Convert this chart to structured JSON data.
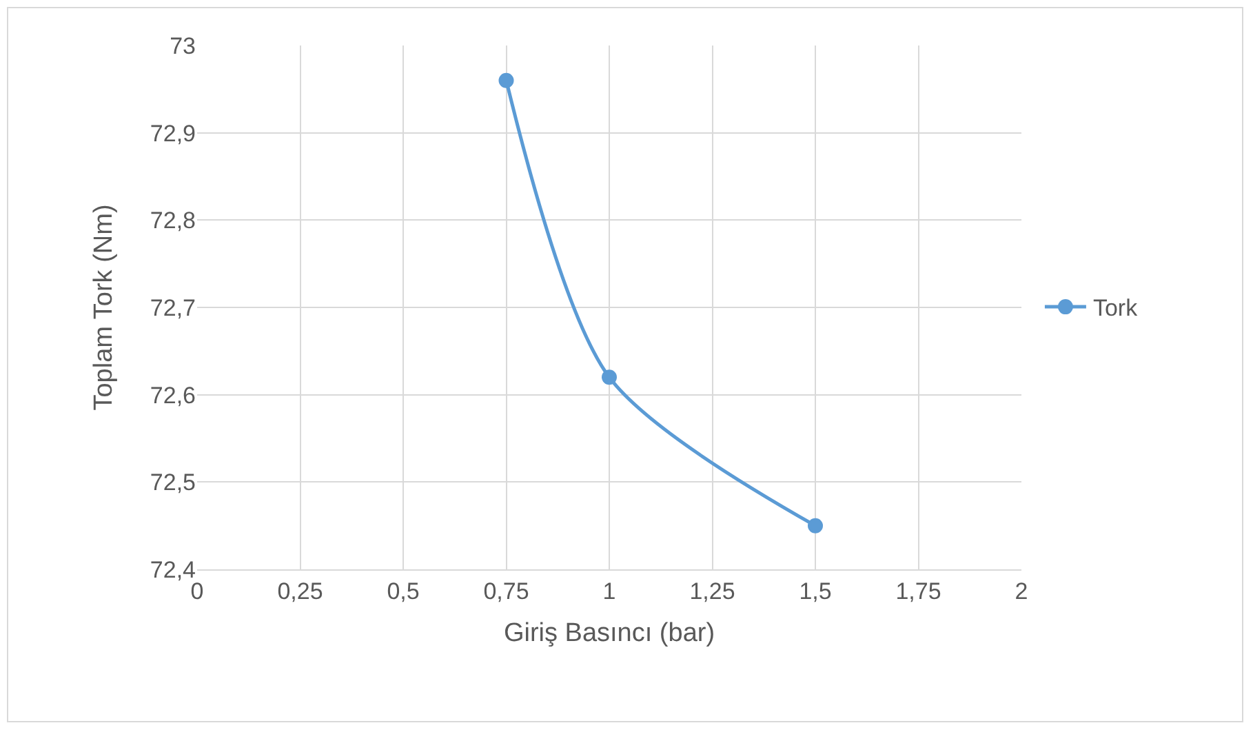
{
  "chart_data": {
    "type": "line",
    "xlabel": "Giriş Basıncı (bar)",
    "ylabel": "Toplam Tork (Nm)",
    "x": [
      0.75,
      1,
      1.5
    ],
    "series": [
      {
        "name": "Tork",
        "color": "#5b9bd5",
        "values": [
          72.96,
          72.62,
          72.45
        ]
      }
    ],
    "xlim": [
      0,
      2
    ],
    "xticks": [
      0,
      {
        "value": 0.25,
        "label": "0,25"
      },
      {
        "value": 0.5,
        "label": "0,5"
      },
      {
        "value": 0.75,
        "label": "0,75"
      },
      1,
      {
        "value": 1.25,
        "label": "1,25"
      },
      {
        "value": 1.5,
        "label": "1,5"
      },
      {
        "value": 1.75,
        "label": "1,75"
      },
      2
    ],
    "ylim": [
      72.4,
      73
    ],
    "yticks": [
      {
        "value": 72.4,
        "label": "72,4"
      },
      {
        "value": 72.5,
        "label": "72,5"
      },
      {
        "value": 72.6,
        "label": "72,6"
      },
      {
        "value": 72.7,
        "label": "72,7"
      },
      {
        "value": 72.8,
        "label": "72,8"
      },
      {
        "value": 72.9,
        "label": "72,9"
      },
      73
    ],
    "grid": true,
    "legend": "right",
    "marker": "circle",
    "line_style": "solid"
  }
}
